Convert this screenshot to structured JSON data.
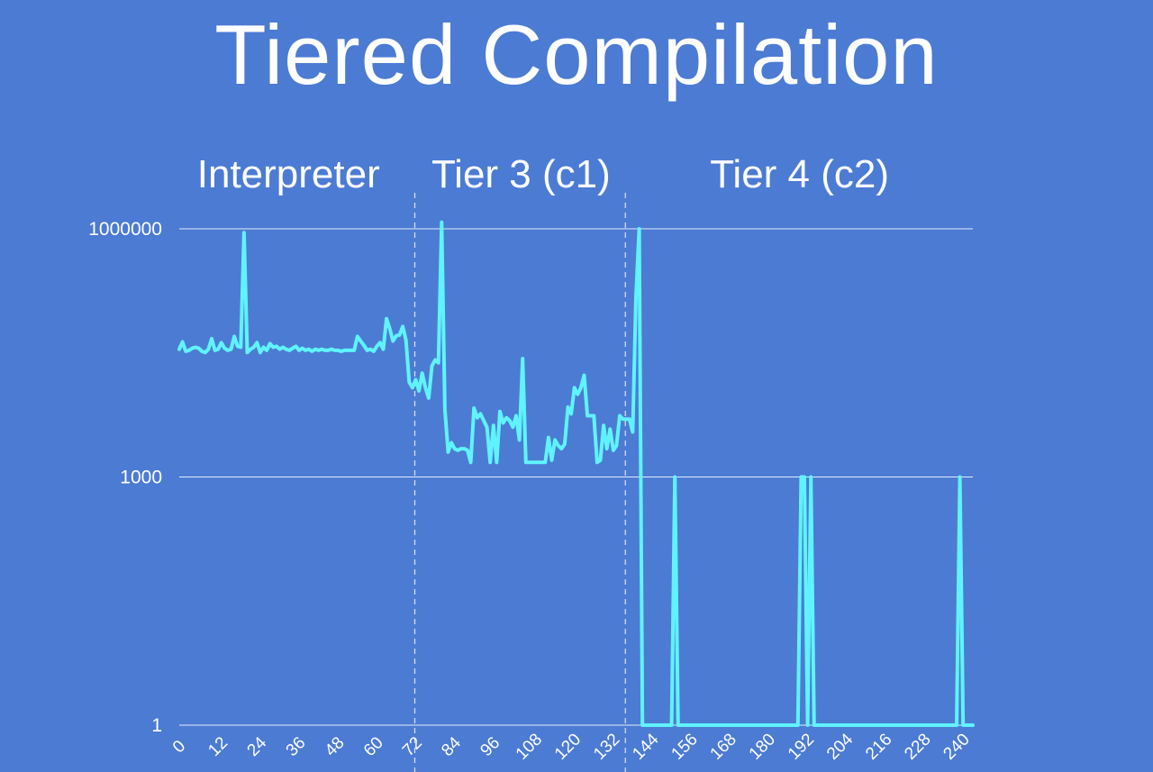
{
  "title": "Tiered Compilation",
  "chart_data": {
    "type": "line",
    "title": "",
    "xlabel": "",
    "ylabel": "",
    "y_scale": "log",
    "ylim": [
      1,
      1000000
    ],
    "y_ticks": [
      1,
      1000,
      1000000
    ],
    "y_tick_labels": [
      "1",
      "1000",
      "1000000"
    ],
    "xlim": [
      0,
      245
    ],
    "x_ticks": [
      0,
      12,
      24,
      36,
      48,
      60,
      72,
      84,
      96,
      108,
      120,
      132,
      144,
      156,
      168,
      180,
      192,
      204,
      216,
      228,
      240
    ],
    "grid": true,
    "regions": [
      {
        "label": "Interpreter",
        "start": 0,
        "end": 73
      },
      {
        "label": "Tier 3 (c1)",
        "start": 73,
        "end": 138
      },
      {
        "label": "Tier 4 (c2)",
        "start": 138,
        "end": 245
      }
    ],
    "region_dividers": [
      73,
      138
    ],
    "series_color": "#5ff3ff",
    "series": [
      {
        "name": "",
        "points": [
          [
            0,
            35000
          ],
          [
            1,
            43000
          ],
          [
            2,
            33000
          ],
          [
            3,
            34000
          ],
          [
            4,
            36000
          ],
          [
            5,
            37000
          ],
          [
            6,
            36000
          ],
          [
            7,
            33000
          ],
          [
            8,
            32000
          ],
          [
            9,
            35000
          ],
          [
            10,
            47000
          ],
          [
            11,
            34000
          ],
          [
            12,
            35000
          ],
          [
            13,
            42000
          ],
          [
            14,
            36000
          ],
          [
            15,
            34000
          ],
          [
            16,
            35000
          ],
          [
            17,
            50000
          ],
          [
            18,
            38000
          ],
          [
            19,
            37000
          ],
          [
            20,
            900000
          ],
          [
            21,
            32000
          ],
          [
            22,
            35000
          ],
          [
            23,
            37000
          ],
          [
            24,
            42000
          ],
          [
            25,
            32000
          ],
          [
            26,
            37000
          ],
          [
            27,
            34000
          ],
          [
            28,
            41000
          ],
          [
            29,
            37000
          ],
          [
            30,
            38000
          ],
          [
            31,
            35000
          ],
          [
            32,
            37000
          ],
          [
            33,
            35000
          ],
          [
            34,
            34000
          ],
          [
            35,
            36000
          ],
          [
            36,
            38000
          ],
          [
            37,
            34000
          ],
          [
            38,
            36000
          ],
          [
            39,
            34000
          ],
          [
            40,
            35000
          ],
          [
            41,
            33000
          ],
          [
            42,
            35000
          ],
          [
            43,
            34000
          ],
          [
            44,
            35000
          ],
          [
            45,
            34000
          ],
          [
            46,
            34000
          ],
          [
            47,
            35000
          ],
          [
            48,
            34000
          ],
          [
            49,
            34000
          ],
          [
            50,
            33000
          ],
          [
            51,
            34000
          ],
          [
            52,
            34000
          ],
          [
            53,
            34000
          ],
          [
            54,
            34000
          ],
          [
            55,
            50000
          ],
          [
            56,
            44000
          ],
          [
            57,
            39000
          ],
          [
            58,
            34000
          ],
          [
            59,
            35000
          ],
          [
            60,
            33000
          ],
          [
            61,
            38000
          ],
          [
            62,
            42000
          ],
          [
            63,
            35000
          ],
          [
            64,
            82000
          ],
          [
            65,
            62000
          ],
          [
            66,
            44000
          ],
          [
            67,
            51000
          ],
          [
            68,
            52000
          ],
          [
            69,
            66000
          ],
          [
            70,
            45000
          ],
          [
            71,
            14000
          ],
          [
            72,
            12000
          ],
          [
            73,
            15000
          ],
          [
            74,
            11000
          ],
          [
            75,
            18000
          ],
          [
            76,
            12000
          ],
          [
            77,
            9000
          ],
          [
            78,
            22000
          ],
          [
            79,
            26000
          ],
          [
            80,
            24000
          ],
          [
            81,
            1200000
          ],
          [
            82,
            6500
          ],
          [
            83,
            2000
          ],
          [
            84,
            2600
          ],
          [
            85,
            2200
          ],
          [
            86,
            2100
          ],
          [
            87,
            2200
          ],
          [
            88,
            2200
          ],
          [
            89,
            2100
          ],
          [
            90,
            1500
          ],
          [
            91,
            6800
          ],
          [
            92,
            5200
          ],
          [
            93,
            5800
          ],
          [
            94,
            4800
          ],
          [
            95,
            4000
          ],
          [
            96,
            1500
          ],
          [
            97,
            4200
          ],
          [
            98,
            1500
          ],
          [
            99,
            6200
          ],
          [
            100,
            4500
          ],
          [
            101,
            5200
          ],
          [
            102,
            4800
          ],
          [
            103,
            4000
          ],
          [
            104,
            5500
          ],
          [
            105,
            2800
          ],
          [
            106,
            27000
          ],
          [
            107,
            1500
          ],
          [
            108,
            1500
          ],
          [
            109,
            1500
          ],
          [
            110,
            1500
          ],
          [
            111,
            1500
          ],
          [
            112,
            1500
          ],
          [
            113,
            1500
          ],
          [
            114,
            3000
          ],
          [
            115,
            1600
          ],
          [
            116,
            2800
          ],
          [
            117,
            2400
          ],
          [
            118,
            2200
          ],
          [
            119,
            2500
          ],
          [
            120,
            7000
          ],
          [
            121,
            5800
          ],
          [
            122,
            12000
          ],
          [
            123,
            10000
          ],
          [
            124,
            12000
          ],
          [
            125,
            17000
          ],
          [
            126,
            5500
          ],
          [
            127,
            5500
          ],
          [
            128,
            5500
          ],
          [
            129,
            1500
          ],
          [
            130,
            1600
          ],
          [
            131,
            4200
          ],
          [
            132,
            2200
          ],
          [
            133,
            3800
          ],
          [
            134,
            2100
          ],
          [
            135,
            2400
          ],
          [
            136,
            5500
          ],
          [
            137,
            5000
          ],
          [
            138,
            5000
          ],
          [
            139,
            5000
          ],
          [
            140,
            3500
          ],
          [
            141,
            150000
          ],
          [
            142,
            1000000
          ],
          [
            143,
            1
          ],
          [
            144,
            1
          ],
          [
            145,
            1
          ],
          [
            146,
            1
          ],
          [
            147,
            1
          ],
          [
            148,
            1
          ],
          [
            149,
            1
          ],
          [
            150,
            1
          ],
          [
            151,
            1
          ],
          [
            152,
            1
          ],
          [
            153,
            1000
          ],
          [
            154,
            1
          ],
          [
            155,
            1
          ],
          [
            156,
            1
          ],
          [
            157,
            1
          ],
          [
            158,
            1
          ],
          [
            159,
            1
          ],
          [
            160,
            1
          ],
          [
            161,
            1
          ],
          [
            162,
            1
          ],
          [
            163,
            1
          ],
          [
            164,
            1
          ],
          [
            165,
            1
          ],
          [
            166,
            1
          ],
          [
            167,
            1
          ],
          [
            168,
            1
          ],
          [
            169,
            1
          ],
          [
            170,
            1
          ],
          [
            171,
            1
          ],
          [
            172,
            1
          ],
          [
            173,
            1
          ],
          [
            174,
            1
          ],
          [
            175,
            1
          ],
          [
            176,
            1
          ],
          [
            177,
            1
          ],
          [
            178,
            1
          ],
          [
            179,
            1
          ],
          [
            180,
            1
          ],
          [
            181,
            1
          ],
          [
            182,
            1
          ],
          [
            183,
            1
          ],
          [
            184,
            1
          ],
          [
            185,
            1
          ],
          [
            186,
            1
          ],
          [
            187,
            1
          ],
          [
            188,
            1
          ],
          [
            189,
            1
          ],
          [
            190,
            1
          ],
          [
            191,
            1
          ],
          [
            192,
            1000
          ],
          [
            193,
            1000
          ],
          [
            194,
            1
          ],
          [
            195,
            1000
          ],
          [
            196,
            1
          ],
          [
            197,
            1
          ],
          [
            198,
            1
          ],
          [
            199,
            1
          ],
          [
            200,
            1
          ],
          [
            201,
            1
          ],
          [
            202,
            1
          ],
          [
            203,
            1
          ],
          [
            204,
            1
          ],
          [
            205,
            1
          ],
          [
            206,
            1
          ],
          [
            207,
            1
          ],
          [
            208,
            1
          ],
          [
            209,
            1
          ],
          [
            210,
            1
          ],
          [
            211,
            1
          ],
          [
            212,
            1
          ],
          [
            213,
            1
          ],
          [
            214,
            1
          ],
          [
            215,
            1
          ],
          [
            216,
            1
          ],
          [
            217,
            1
          ],
          [
            218,
            1
          ],
          [
            219,
            1
          ],
          [
            220,
            1
          ],
          [
            221,
            1
          ],
          [
            222,
            1
          ],
          [
            223,
            1
          ],
          [
            224,
            1
          ],
          [
            225,
            1
          ],
          [
            226,
            1
          ],
          [
            227,
            1
          ],
          [
            228,
            1
          ],
          [
            229,
            1
          ],
          [
            230,
            1
          ],
          [
            231,
            1
          ],
          [
            232,
            1
          ],
          [
            233,
            1
          ],
          [
            234,
            1
          ],
          [
            235,
            1
          ],
          [
            236,
            1
          ],
          [
            237,
            1
          ],
          [
            238,
            1
          ],
          [
            239,
            1
          ],
          [
            240,
            1
          ],
          [
            241,
            1000
          ],
          [
            242,
            1
          ],
          [
            243,
            1
          ],
          [
            244,
            1
          ],
          [
            245,
            1
          ]
        ]
      }
    ]
  }
}
